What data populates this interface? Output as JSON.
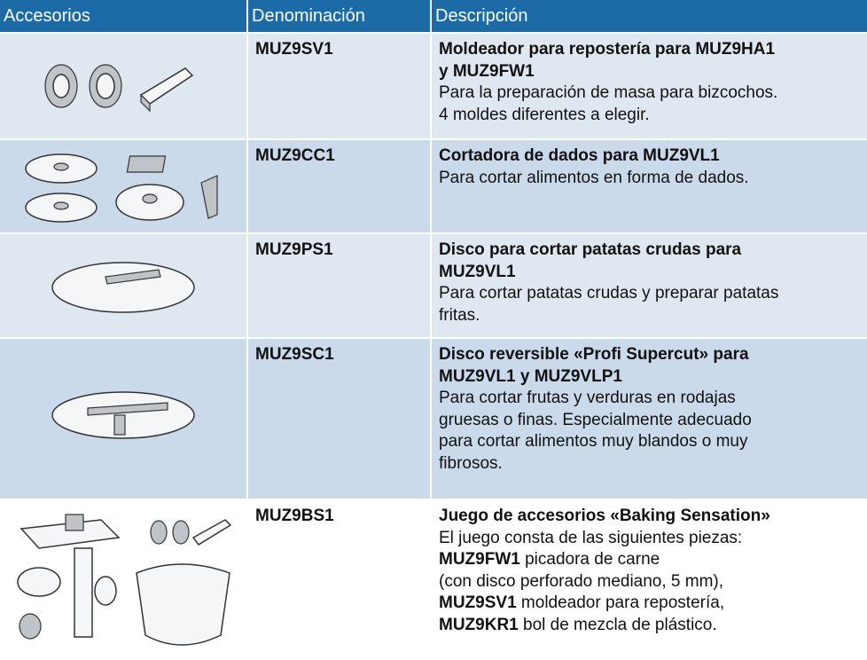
{
  "table": {
    "headers": [
      "Accesorios",
      "Denominación",
      "Descripción"
    ],
    "rows": [
      {
        "code": "MUZ9SV1",
        "title": [
          "Moldeador para repostería para MUZ9HA1",
          "y MUZ9FW1"
        ],
        "lines": [
          "Para la preparación de masa para bizcochos.",
          "4 moldes diferentes a elegir."
        ]
      },
      {
        "code": "MUZ9CC1",
        "title": [
          "Cortadora de dados para MUZ9VL1"
        ],
        "lines": [
          "Para cortar alimentos en forma de dados."
        ]
      },
      {
        "code": "MUZ9PS1",
        "title": [
          "Disco para cortar patatas crudas para",
          "MUZ9VL1"
        ],
        "lines": [
          "Para cortar patatas crudas y preparar patatas",
          "fritas."
        ]
      },
      {
        "code": "MUZ9SC1",
        "title": [
          "Disco reversible «Profi Supercut» para",
          "MUZ9VL1 y MUZ9VLP1"
        ],
        "lines": [
          "Para cortar frutas y verduras en rodajas",
          "gruesas o finas. Especialmente adecuado",
          "para cortar alimentos muy blandos o muy",
          "fibrosos."
        ]
      },
      {
        "code": "MUZ9BS1",
        "title": [
          "Juego de accesorios «Baking Sensation»"
        ],
        "lines": [
          "El juego consta de las siguientes piezas:",
          {
            "code": "MUZ9FW1",
            "text": "picadora de carne"
          },
          "(con disco perforado mediano, 5 mm),",
          {
            "code": "MUZ9SV1",
            "text": "moldeador para repostería,"
          },
          {
            "code": "MUZ9KR1",
            "text": "bol de mezcla de plástico."
          }
        ]
      }
    ]
  }
}
